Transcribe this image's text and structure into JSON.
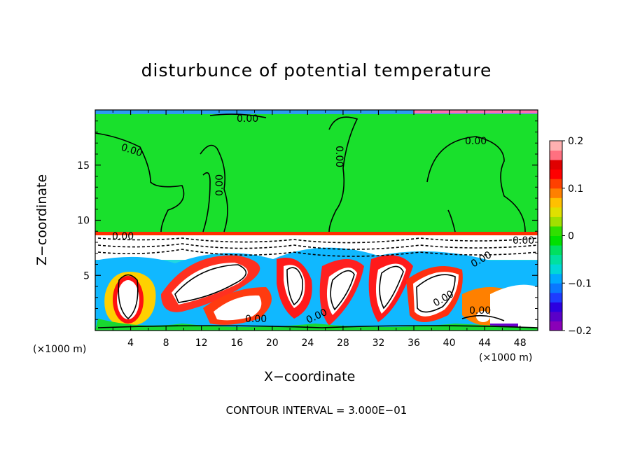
{
  "chart_data": {
    "type": "heatmap",
    "title": "disturbunce of potential temperature",
    "xlabel": "X−coordinate",
    "ylabel": "Z−coordinate",
    "x_unit_left": "(×1000 m)",
    "x_unit_right": "(×1000 m)",
    "xlim": [
      0,
      50
    ],
    "ylim": [
      0,
      20
    ],
    "x_ticks": [
      4,
      8,
      12,
      16,
      20,
      24,
      28,
      32,
      36,
      40,
      44,
      48
    ],
    "x_tick_labels": [
      "4",
      "8",
      "12",
      "16",
      "20",
      "24",
      "28",
      "32",
      "36",
      "40",
      "44",
      "48"
    ],
    "y_ticks": [
      5,
      10,
      15
    ],
    "y_tick_labels": [
      "5",
      "10",
      "15"
    ],
    "colorbar": {
      "range": [
        -0.2,
        0.2
      ],
      "tick_labels": [
        "0.2",
        "0.1",
        "0",
        "−0.1",
        "−0.2"
      ],
      "tick_values": [
        0.2,
        0.1,
        0,
        -0.1,
        -0.2
      ],
      "colors": [
        "#8a00b8",
        "#5a00c8",
        "#2c00e0",
        "#1e3cff",
        "#0a78ff",
        "#00aaff",
        "#00d8d8",
        "#00e0a0",
        "#00e060",
        "#00e000",
        "#30e000",
        "#a0e000",
        "#e0e000",
        "#ffc000",
        "#ff8000",
        "#ff4000",
        "#ff0000",
        "#e00000",
        "#ff7080",
        "#ffb0b0"
      ]
    },
    "contour_labels": [
      "0.00",
      "0.00",
      "0.00",
      "0.00",
      "0.00",
      "0.00",
      "0.00",
      "0.00",
      "0.00",
      "0.00",
      "0.00",
      "0.00"
    ],
    "contour_interval_label": "CONTOUR INTERVAL = 3.000E−01",
    "grid": false
  }
}
